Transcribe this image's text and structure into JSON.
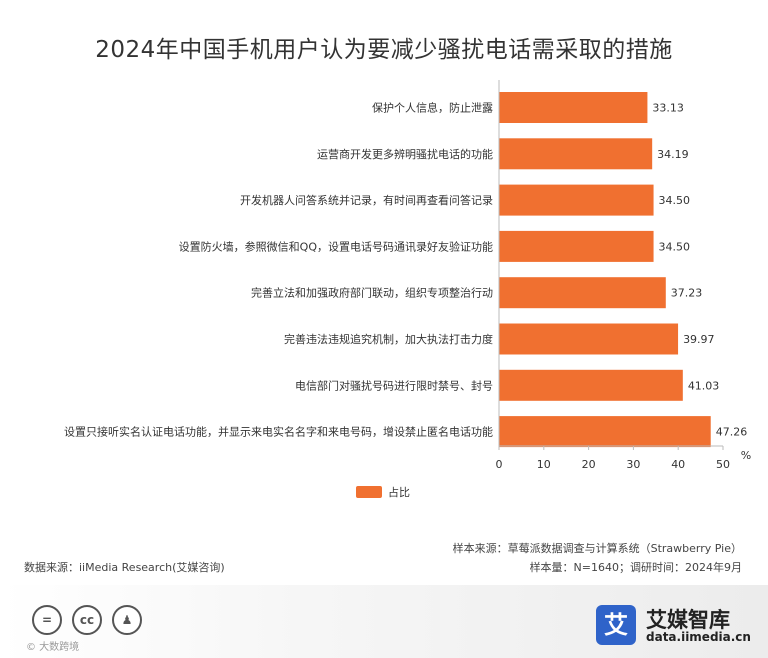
{
  "header": {
    "title": "2024年中国手机用户认为要减少骚扰电话需采取的措施"
  },
  "chart_data": {
    "type": "bar",
    "orientation": "horizontal",
    "title": "2024年中国手机用户认为要减少骚扰电话需采取的措施",
    "categories": [
      "保护个人信息，防止泄露",
      "运营商开发更多辨明骚扰电话的功能",
      "开发机器人问答系统并记录，有时间再查看问答记录",
      "设置防火墙，参照微信和QQ，设置电话号码通讯录好友验证功能",
      "完善立法和加强政府部门联动，组织专项整治行动",
      "完善违法违规追究机制，加大执法打击力度",
      "电信部门对骚扰号码进行限时禁号、封号",
      "设置只接听实名认证电话功能，并显示来电实名名字和来电号码，增设禁止匿名电话功能"
    ],
    "series": [
      {
        "name": "占比",
        "values": [
          33.13,
          34.19,
          34.5,
          34.5,
          37.23,
          39.97,
          41.03,
          47.26
        ],
        "color": "#f07030"
      }
    ],
    "value_labels": [
      "33.13",
      "34.19",
      "34.50",
      "34.50",
      "37.23",
      "39.97",
      "41.03",
      "47.26"
    ],
    "xlim": [
      0,
      50
    ],
    "x_ticks": [
      "0",
      "10",
      "20",
      "30",
      "40",
      "50"
    ],
    "x_unit": "%",
    "legend": {
      "position": "bottom",
      "label": "占比"
    },
    "grid": false
  },
  "notes": {
    "source": "数据来源：iiMedia Research(艾媒咨询)",
    "sample_source": "样本来源：草莓派数据调查与计算系统（Strawberry Pie）",
    "sample_size": "样本量：N=1640；调研时间：2024年9月"
  },
  "footer": {
    "license_icons": [
      "equals-icon",
      "cc-icon",
      "person-icon"
    ],
    "watermark": "© 大数跨境",
    "brand_mark": "艾",
    "brand_name": "艾媒智库",
    "brand_url": "data.iimedia.cn",
    "brand_color": "#2f63c9"
  }
}
